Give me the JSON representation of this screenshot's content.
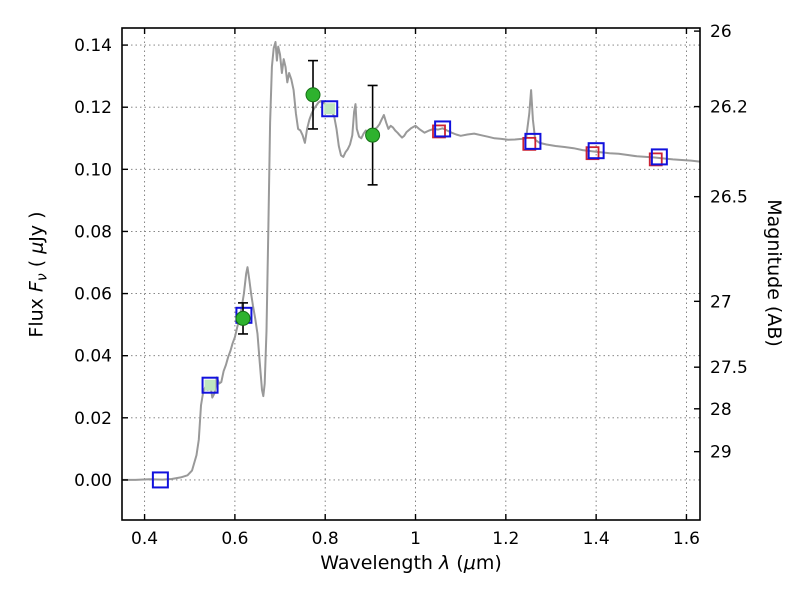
{
  "figure": {
    "background": "#ffffff"
  },
  "chart_data": {
    "type": "line+scatter",
    "title": "",
    "xlabel_parts": [
      "Wavelength ",
      "λ",
      " (",
      "μ",
      "m)"
    ],
    "ylabel_left_parts": [
      "Flux ",
      "F",
      "ν",
      " ( ",
      "μ",
      "Jy )"
    ],
    "ylabel_right": "Magnitude (AB)",
    "xlim": [
      0.35,
      1.63
    ],
    "ylim": [
      -0.0129,
      0.1455
    ],
    "x_ticks": {
      "values": [
        0.4,
        0.6,
        0.8,
        1.0,
        1.2,
        1.4,
        1.6
      ],
      "labels": [
        "0.4",
        "0.6",
        "0.8",
        "1",
        "1.2",
        "1.4",
        "1.6"
      ]
    },
    "y_ticks_left": {
      "values": [
        0.0,
        0.02,
        0.04,
        0.06,
        0.08,
        0.1,
        0.12,
        0.14
      ],
      "labels": [
        "0.00",
        "0.02",
        "0.04",
        "0.06",
        "0.08",
        "0.10",
        "0.12",
        "0.14"
      ]
    },
    "y_ticks_right": [
      {
        "label": "26",
        "flux": 0.1445
      },
      {
        "label": "26.2",
        "flux": 0.1202
      },
      {
        "label": "26.5",
        "flux": 0.0912
      },
      {
        "label": "27",
        "flux": 0.0575
      },
      {
        "label": "27.5",
        "flux": 0.0363
      },
      {
        "label": "28",
        "flux": 0.0229
      },
      {
        "label": "29",
        "flux": 0.0091
      }
    ],
    "grid": {
      "style": "dotted",
      "color": "#777777"
    },
    "colors": {
      "spectrum": "#999999",
      "model_square": "#1111dd",
      "red_square": "#cc2233",
      "observed": "#2eb22e",
      "observed_edge": "#157015",
      "errorbar": "#000000",
      "inner_fill": "#bfe6bf",
      "frame": "#000000"
    },
    "spectrum": {
      "x": [
        0.35,
        0.38,
        0.41,
        0.44,
        0.46,
        0.48,
        0.495,
        0.505,
        0.515,
        0.52,
        0.525,
        0.53,
        0.535,
        0.54,
        0.545,
        0.55,
        0.555,
        0.56,
        0.565,
        0.57,
        0.575,
        0.58,
        0.585,
        0.59,
        0.595,
        0.6,
        0.605,
        0.61,
        0.615,
        0.62,
        0.625,
        0.628,
        0.632,
        0.636,
        0.64,
        0.645,
        0.65,
        0.655,
        0.66,
        0.663,
        0.666,
        0.67,
        0.674,
        0.678,
        0.682,
        0.686,
        0.69,
        0.693,
        0.696,
        0.7,
        0.704,
        0.708,
        0.712,
        0.716,
        0.72,
        0.725,
        0.73,
        0.735,
        0.74,
        0.745,
        0.75,
        0.755,
        0.76,
        0.765,
        0.77,
        0.775,
        0.78,
        0.785,
        0.79,
        0.795,
        0.8,
        0.805,
        0.81,
        0.815,
        0.82,
        0.825,
        0.83,
        0.835,
        0.84,
        0.845,
        0.85,
        0.855,
        0.86,
        0.864,
        0.867,
        0.87,
        0.875,
        0.88,
        0.885,
        0.89,
        0.895,
        0.9,
        0.905,
        0.91,
        0.915,
        0.92,
        0.925,
        0.93,
        0.935,
        0.94,
        0.945,
        0.95,
        0.955,
        0.96,
        0.965,
        0.97,
        0.975,
        0.98,
        0.99,
        1.0,
        1.01,
        1.02,
        1.03,
        1.04,
        1.05,
        1.06,
        1.07,
        1.08,
        1.09,
        1.1,
        1.115,
        1.13,
        1.145,
        1.16,
        1.175,
        1.19,
        1.205,
        1.22,
        1.235,
        1.245,
        1.252,
        1.256,
        1.26,
        1.265,
        1.275,
        1.29,
        1.31,
        1.33,
        1.35,
        1.37,
        1.39,
        1.41,
        1.43,
        1.45,
        1.47,
        1.49,
        1.51,
        1.53,
        1.55,
        1.57,
        1.59,
        1.61,
        1.63
      ],
      "y": [
        0.0,
        0.0,
        0.0002,
        0.0001,
        0.0003,
        0.0008,
        0.0015,
        0.003,
        0.008,
        0.013,
        0.024,
        0.0285,
        0.03,
        0.029,
        0.031,
        0.0265,
        0.028,
        0.033,
        0.031,
        0.0315,
        0.035,
        0.037,
        0.0395,
        0.0415,
        0.044,
        0.046,
        0.049,
        0.052,
        0.0555,
        0.06,
        0.0665,
        0.0685,
        0.0645,
        0.06,
        0.056,
        0.052,
        0.047,
        0.038,
        0.029,
        0.027,
        0.031,
        0.048,
        0.08,
        0.115,
        0.133,
        0.139,
        0.141,
        0.135,
        0.1395,
        0.137,
        0.131,
        0.1355,
        0.133,
        0.128,
        0.131,
        0.129,
        0.1255,
        0.118,
        0.113,
        0.1125,
        0.111,
        0.1085,
        0.113,
        0.116,
        0.118,
        0.1195,
        0.1205,
        0.1215,
        0.122,
        0.1215,
        0.121,
        0.1205,
        0.1195,
        0.1185,
        0.117,
        0.113,
        0.1075,
        0.1045,
        0.104,
        0.1055,
        0.1065,
        0.108,
        0.111,
        0.1185,
        0.121,
        0.113,
        0.1105,
        0.11,
        0.1115,
        0.1125,
        0.112,
        0.1115,
        0.1125,
        0.113,
        0.1135,
        0.1145,
        0.116,
        0.1175,
        0.115,
        0.113,
        0.114,
        0.1135,
        0.1125,
        0.1118,
        0.111,
        0.1102,
        0.1108,
        0.112,
        0.1132,
        0.114,
        0.1128,
        0.1118,
        0.1125,
        0.113,
        0.1128,
        0.1132,
        0.1125,
        0.1118,
        0.1112,
        0.1108,
        0.1112,
        0.1115,
        0.111,
        0.1105,
        0.11,
        0.1098,
        0.1095,
        0.1096,
        0.1098,
        0.11,
        0.118,
        0.1255,
        0.116,
        0.1095,
        0.1085,
        0.108,
        0.1075,
        0.1072,
        0.1068,
        0.1062,
        0.1058,
        0.1055,
        0.1052,
        0.105,
        0.1046,
        0.1042,
        0.104,
        0.1038,
        0.1035,
        0.1032,
        0.103,
        0.1028,
        0.1025
      ]
    },
    "model_squares": [
      {
        "x": 0.435,
        "y": 0.0,
        "green_fill": false
      },
      {
        "x": 0.545,
        "y": 0.0305,
        "green_fill": true
      },
      {
        "x": 0.62,
        "y": 0.053,
        "green_fill": false
      },
      {
        "x": 0.81,
        "y": 0.1195,
        "green_fill": true
      },
      {
        "x": 1.06,
        "y": 0.113,
        "green_fill": false
      },
      {
        "x": 1.26,
        "y": 0.109,
        "green_fill": false
      },
      {
        "x": 1.4,
        "y": 0.106,
        "green_fill": false
      },
      {
        "x": 1.54,
        "y": 0.104,
        "green_fill": false
      }
    ],
    "red_squares": [
      {
        "x": 1.052,
        "y": 0.1122
      },
      {
        "x": 1.252,
        "y": 0.1082
      },
      {
        "x": 1.392,
        "y": 0.1052
      },
      {
        "x": 1.532,
        "y": 0.1032
      }
    ],
    "observed_points": [
      {
        "x": 0.618,
        "y": 0.052,
        "yerr": 0.005
      },
      {
        "x": 0.773,
        "y": 0.124,
        "yerr": 0.011
      },
      {
        "x": 0.905,
        "y": 0.111,
        "yerr": 0.016
      }
    ]
  }
}
